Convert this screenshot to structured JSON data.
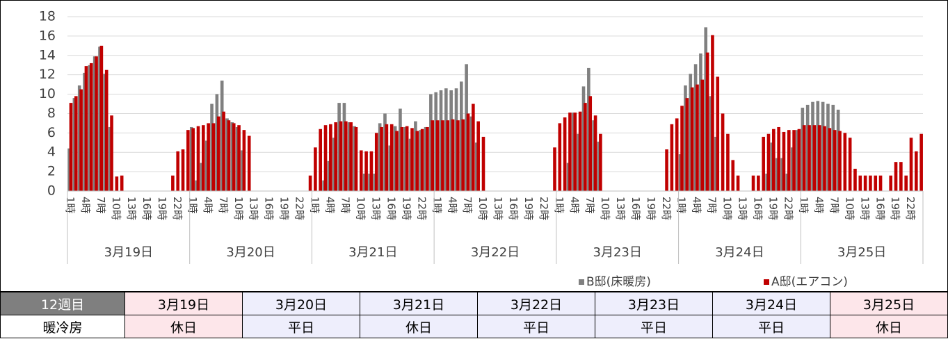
{
  "chart_data": {
    "type": "bar",
    "categories": [
      "1時",
      null,
      null,
      "4時",
      null,
      null,
      "7時",
      null,
      null,
      "10時",
      null,
      null,
      "13時",
      null,
      null,
      "16時",
      null,
      null,
      "19時",
      null,
      null,
      "22時",
      null,
      null,
      "1時",
      null,
      null,
      "4時",
      null,
      null,
      "7時",
      null,
      null,
      "10時",
      null,
      null,
      "13時",
      null,
      null,
      "16時",
      null,
      null,
      "19時",
      null,
      null,
      "22時",
      null,
      null,
      "1時",
      null,
      null,
      "4時",
      null,
      null,
      "7時",
      null,
      null,
      "10時",
      null,
      null,
      "13時",
      null,
      null,
      "16時",
      null,
      null,
      "19時",
      null,
      null,
      "22時",
      null,
      null,
      "1時",
      null,
      null,
      "4時",
      null,
      null,
      "7時",
      null,
      null,
      "10時",
      null,
      null,
      "13時",
      null,
      null,
      "16時",
      null,
      null,
      "19時",
      null,
      null,
      "22時",
      null,
      null,
      "1時",
      null,
      null,
      "4時",
      null,
      null,
      "7時",
      null,
      null,
      "10時",
      null,
      null,
      "13時",
      null,
      null,
      "16時",
      null,
      null,
      "19時",
      null,
      null,
      "22時",
      null,
      null,
      "1時",
      null,
      null,
      "4時",
      null,
      null,
      "7時",
      null,
      null,
      "10時",
      null,
      null,
      "13時",
      null,
      null,
      "16時",
      null,
      null,
      "19時",
      null,
      null,
      "22時",
      null,
      null,
      "1時",
      null,
      null,
      "4時",
      null,
      null,
      "7時",
      null,
      null,
      "10時",
      null,
      null,
      "13時",
      null,
      null,
      "16時",
      null,
      null,
      "19時",
      null,
      null,
      "22時",
      null,
      null
    ],
    "groups": [
      "3月19日",
      "3月20日",
      "3月21日",
      "3月22日",
      "3月23日",
      "3月24日",
      "3月25日"
    ],
    "series": [
      {
        "name": "B邸(床暖房)",
        "color": "#808080",
        "values": [
          4.4,
          9.6,
          10.9,
          12.2,
          13.0,
          13.9,
          14.9,
          12.1,
          6.6,
          0,
          0,
          0,
          0,
          0,
          0,
          0,
          0,
          0,
          0,
          0,
          0,
          0,
          0,
          0,
          6.6,
          1.1,
          2.9,
          5.2,
          9.0,
          10.0,
          11.4,
          7.5,
          7.1,
          6.6,
          4.2,
          0,
          0,
          0,
          0,
          0,
          0,
          0,
          0,
          0,
          0,
          0,
          0,
          0,
          0,
          0,
          1.1,
          3.1,
          5.5,
          9.1,
          9.1,
          7.1,
          6.7,
          0,
          1.8,
          1.8,
          1.8,
          7.0,
          8.0,
          4.7,
          6.7,
          8.5,
          6.6,
          5.4,
          7.2,
          6.3,
          6.6,
          10.0,
          10.2,
          10.4,
          10.6,
          10.4,
          10.6,
          11.3,
          13.1,
          7.7,
          5.0,
          0,
          0,
          0,
          0,
          0,
          0,
          0,
          0,
          0,
          0,
          0,
          0,
          0,
          0,
          0,
          0,
          0,
          2.9,
          8.1,
          5.9,
          10.8,
          12.7,
          7.3,
          5.1,
          0,
          0,
          0,
          0,
          0,
          0,
          0,
          0,
          0,
          0,
          0,
          0,
          0,
          0,
          0,
          3.8,
          10.9,
          12.1,
          13.1,
          14.2,
          16.9,
          9.8,
          5.6,
          0,
          0,
          0,
          0,
          0,
          0,
          0,
          0,
          0,
          1.8,
          5.0,
          3.4,
          3.4,
          1.8,
          4.5,
          6.3,
          8.6,
          8.9,
          9.2,
          9.3,
          9.2,
          9.0,
          8.9,
          8.4,
          0,
          0,
          0,
          0,
          0,
          0,
          0,
          0,
          0,
          0,
          0,
          0,
          0,
          0,
          0,
          0
        ]
      },
      {
        "name": "A邸(エアコン)",
        "color": "#c00000",
        "values": [
          9.1,
          9.8,
          10.5,
          12.9,
          13.2,
          13.9,
          15.0,
          12.5,
          7.8,
          1.5,
          1.6,
          0,
          0,
          0,
          0,
          0,
          0,
          0,
          0,
          0,
          1.6,
          4.1,
          4.3,
          6.3,
          6.5,
          6.7,
          6.8,
          7.0,
          7.0,
          7.7,
          8.2,
          7.3,
          7.0,
          6.8,
          6.3,
          5.7,
          0,
          0,
          0,
          0,
          0,
          0,
          0,
          0,
          0,
          0,
          0,
          1.6,
          4.5,
          6.4,
          6.8,
          6.9,
          7.1,
          7.2,
          7.2,
          7.1,
          6.6,
          4.2,
          4.1,
          4.1,
          6.0,
          6.6,
          6.9,
          6.9,
          6.2,
          6.6,
          6.7,
          6.5,
          6.2,
          6.4,
          6.6,
          7.3,
          7.3,
          7.3,
          7.3,
          7.4,
          7.3,
          7.4,
          8.0,
          9.0,
          7.2,
          5.6,
          0,
          0,
          0,
          0,
          0,
          0,
          0,
          0,
          0,
          0,
          0,
          0,
          0,
          4.5,
          7.0,
          7.6,
          8.1,
          8.1,
          8.2,
          9.1,
          9.8,
          7.8,
          5.9,
          0,
          0,
          0,
          0,
          0,
          0,
          0,
          0,
          0,
          0,
          0,
          0,
          4.3,
          6.9,
          7.5,
          8.8,
          9.6,
          10.7,
          11.0,
          11.5,
          14.3,
          16.1,
          11.8,
          8.0,
          5.9,
          3.2,
          1.6,
          0,
          0,
          1.6,
          1.6,
          5.6,
          5.9,
          6.4,
          6.6,
          6.1,
          6.3,
          6.3,
          6.4,
          6.8,
          6.8,
          6.8,
          6.8,
          6.7,
          6.5,
          6.3,
          6.2,
          6.0,
          5.5,
          2.3,
          1.6,
          1.6,
          1.6,
          1.6,
          1.6,
          0,
          1.6,
          3.0,
          3.0,
          1.6,
          5.5,
          4.1,
          5.9
        ]
      }
    ],
    "ylim": [
      0,
      18
    ],
    "yticks": [
      0,
      2,
      4,
      6,
      8,
      10,
      12,
      14,
      16,
      18
    ],
    "grid": true,
    "legend": "bottom-right"
  },
  "table": {
    "header": [
      "12週目",
      "3月19日",
      "3月20日",
      "3月21日",
      "3月22日",
      "3月23日",
      "3月24日",
      "3月25日"
    ],
    "rows": [
      [
        "暖冷房",
        "休日",
        "平日",
        "休日",
        "平日",
        "平日",
        "平日",
        "休日"
      ]
    ]
  }
}
